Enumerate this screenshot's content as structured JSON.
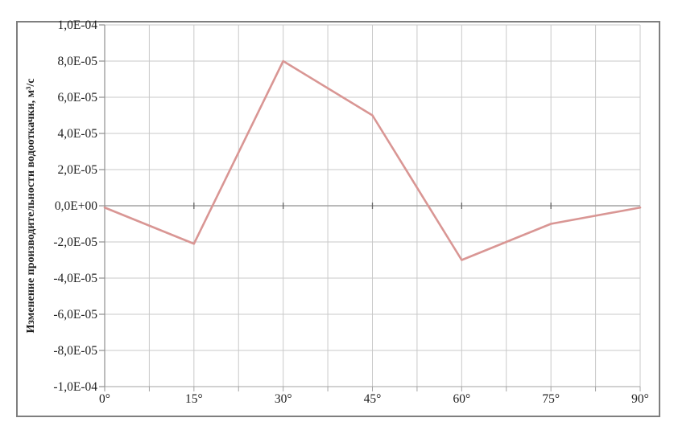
{
  "chart_data": {
    "type": "line",
    "title": "",
    "xlabel": "",
    "ylabel": "Изменение производительности водооткачки, м³/с",
    "categories": [
      "0°",
      "15°",
      "30°",
      "45°",
      "60°",
      "75°",
      "90°"
    ],
    "x_values": [
      0,
      15,
      30,
      45,
      60,
      75,
      90
    ],
    "series": [
      {
        "name": "Изменение производительности водооткачки",
        "values": [
          -1e-06,
          -2.1e-05,
          8e-05,
          5e-05,
          -3e-05,
          -1e-05,
          -1e-06
        ]
      }
    ],
    "ylim": [
      -0.0001,
      0.0001
    ],
    "xlim": [
      0,
      90
    ],
    "ytick_step": 2e-05,
    "ytick_labels": [
      "1,0E-04",
      "8,0E-05",
      "6,0E-05",
      "4,0E-05",
      "2,0E-05",
      "0,0E+00",
      "-2,0E-05",
      "-4,0E-05",
      "-6,0E-05",
      "-8,0E-05",
      "-1,0E-04"
    ],
    "minor_x_step_deg": 7.5,
    "grid": "major horizontal every 2.0E-05, vertical every 7.5°",
    "legend_position": "none",
    "colors": {
      "series_line": "#d99694",
      "gridline": "#c9c9c9",
      "zero_line": "#a3a3a3",
      "axis_line": "#8f8f8f",
      "tick_dark": "#666666",
      "text": "#1f1f1f",
      "frame_border": "#7f7f7f",
      "background": "#ffffff"
    }
  }
}
